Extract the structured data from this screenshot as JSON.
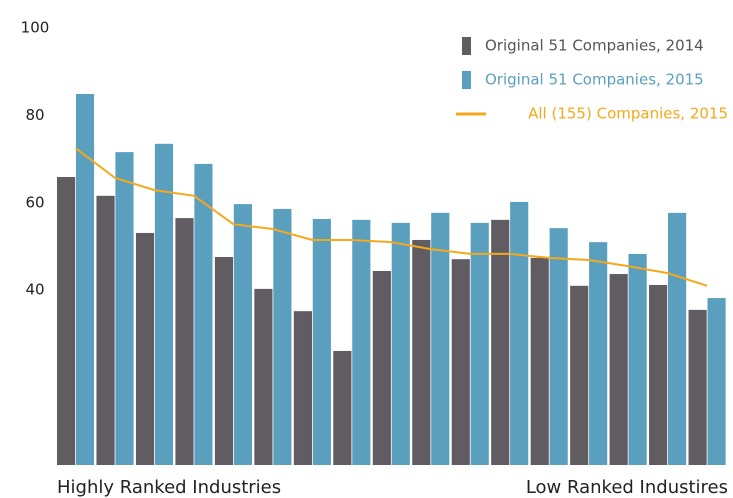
{
  "chart_data": {
    "type": "bar",
    "categories": [
      null,
      null,
      null,
      null,
      null,
      null,
      null,
      null,
      null,
      null,
      null,
      null,
      null,
      null,
      null,
      null,
      null
    ],
    "series": [
      {
        "name": "Original 51 Companies, 2014",
        "color": "#605c61",
        "values": [
          65.9,
          61.6,
          53.1,
          56.5,
          47.6,
          40.3,
          35.2,
          26.1,
          44.4,
          51.5,
          47.1,
          56.1,
          47.4,
          41.0,
          43.7,
          41.2,
          35.5
        ]
      },
      {
        "name": "Original 51 Companies, 2015",
        "color": "#5b9fbf",
        "values": [
          84.9,
          71.6,
          73.5,
          68.9,
          59.7,
          58.6,
          56.3,
          56.1,
          55.4,
          57.7,
          55.4,
          60.2,
          54.2,
          51.0,
          48.3,
          57.7,
          38.2
        ]
      },
      {
        "name": "All (155) Companies, 2015",
        "type": "line",
        "color": "#f5a81c",
        "values": [
          72.5,
          65.7,
          62.9,
          61.6,
          55.1,
          54.0,
          51.5,
          51.5,
          51.0,
          49.4,
          48.3,
          48.3,
          47.4,
          46.9,
          45.5,
          43.9,
          41.0
        ]
      }
    ],
    "annotations": [
      "Highly Ranked Industries",
      "Low Ranked Industires"
    ],
    "ylim": [
      0,
      100
    ],
    "yticks": [
      40,
      60,
      80,
      100
    ],
    "grid": false,
    "legend": "top-right"
  }
}
